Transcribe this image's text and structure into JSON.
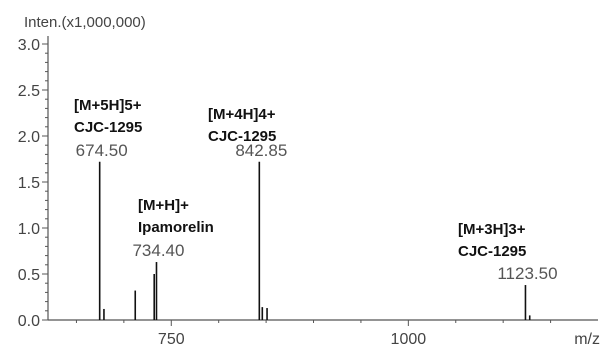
{
  "chart_data": {
    "type": "bar",
    "ylabel": "Inten.(x1,000,000)",
    "xlabel": "m/z",
    "xlim": [
      620,
      1200
    ],
    "ylim": [
      0,
      3.0
    ],
    "x_ticks": [
      750,
      1000
    ],
    "y_ticks": [
      "0.0",
      "0.5",
      "1.0",
      "1.5",
      "2.0",
      "2.5",
      "3.0"
    ],
    "peaks": [
      {
        "mz": 674.5,
        "intensity": 1.72,
        "label": "674.50"
      },
      {
        "mz": 679,
        "intensity": 0.12
      },
      {
        "mz": 712,
        "intensity": 0.32
      },
      {
        "mz": 732,
        "intensity": 0.5
      },
      {
        "mz": 734.4,
        "intensity": 0.63,
        "label": "734.40"
      },
      {
        "mz": 842.85,
        "intensity": 1.72,
        "label": "842.85"
      },
      {
        "mz": 846,
        "intensity": 0.14
      },
      {
        "mz": 851,
        "intensity": 0.13
      },
      {
        "mz": 1123.5,
        "intensity": 0.38,
        "label": "1123.50"
      },
      {
        "mz": 1128,
        "intensity": 0.05
      }
    ],
    "annotations": [
      {
        "line1": "[M+5H]5+",
        "line2": "CJC-1295"
      },
      {
        "line1": "[M+4H]4+",
        "line2": "CJC-1295"
      },
      {
        "line1": "[M+H]+",
        "line2": "Ipamorelin"
      },
      {
        "line1": "[M+3H]3+",
        "line2": "CJC-1295"
      }
    ]
  }
}
